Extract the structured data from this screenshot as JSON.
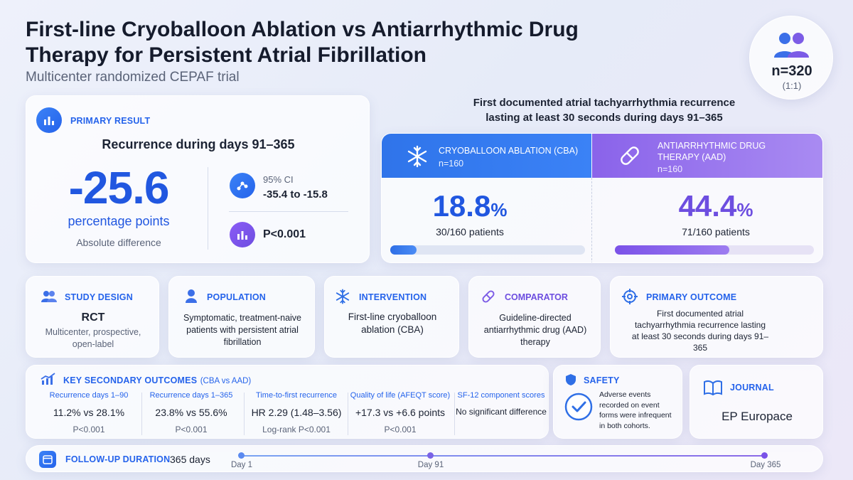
{
  "header": {
    "title": "First-line Cryoballoon Ablation vs Antiarrhythmic Drug Therapy for Persistent Atrial Fibrillation",
    "subtitle": "Multicenter randomized CEPAF trial"
  },
  "enrollment": {
    "n": "n=320",
    "ratio": "(1:1)"
  },
  "primary_result": {
    "label": "PRIMARY RESULT",
    "heading": "Recurrence during days 91–365",
    "value": "-25.6",
    "unit": "percentage points",
    "caption": "Absolute difference",
    "ci_label": "95% CI",
    "ci_value": "-35.4 to -15.8",
    "p_value": "P<0.001"
  },
  "comparison": {
    "heading": "First documented atrial tachyarrhythmia recurrence lasting at least 30 seconds during days 91–365",
    "arms": [
      {
        "name": "CRYOBALLOON ABLATION (CBA)",
        "n": "n=160",
        "rate": "18.8",
        "pct": "%",
        "patients": "30/160 patients",
        "fraction": 0.188
      },
      {
        "name": "ANTIARRHYTHMIC DRUG THERAPY (AAD)",
        "n": "n=160",
        "rate": "44.4",
        "pct": "%",
        "patients": "71/160 patients",
        "fraction": 0.444
      }
    ]
  },
  "pico": {
    "design": {
      "label": "STUDY DESIGN",
      "main": "RCT",
      "detail": "Multicenter, prospective, open-label"
    },
    "population": {
      "label": "POPULATION",
      "text": "Symptomatic, treatment-naive patients with persistent atrial fibrillation"
    },
    "intervention": {
      "label": "INTERVENTION",
      "text": "First-line cryoballoon ablation (CBA)"
    },
    "comparator": {
      "label": "COMPARATOR",
      "text": "Guideline-directed antiarrhythmic drug (AAD) therapy"
    },
    "outcome": {
      "label": "PRIMARY OUTCOME",
      "text": "First documented atrial tachyarrhythmia recurrence lasting at least 30 seconds during days 91–365"
    }
  },
  "secondary": {
    "label": "KEY SECONDARY OUTCOMES",
    "label_suffix": "(CBA vs AAD)",
    "items": [
      {
        "title": "Recurrence days 1–90",
        "value": "11.2% vs 28.1%",
        "p": "P<0.001"
      },
      {
        "title": "Recurrence days 1–365",
        "value": "23.8% vs 55.6%",
        "p": "P<0.001"
      },
      {
        "title": "Time-to-first recurrence",
        "value": "HR 2.29 (1.48–3.56)",
        "p": "Log-rank P<0.001"
      },
      {
        "title": "Quality of life (AFEQT score)",
        "value": "+17.3 vs +6.6 points",
        "p": "P<0.001"
      },
      {
        "title": "SF-12 component scores",
        "value": "No significant difference",
        "p": ""
      }
    ]
  },
  "safety": {
    "label": "SAFETY",
    "text": "Adverse events recorded on event forms were infrequent in both cohorts."
  },
  "journal": {
    "label": "JOURNAL",
    "name": "EP Europace"
  },
  "followup": {
    "label": "FOLLOW-UP DURATION",
    "value": "365 days",
    "markers": [
      "Day 1",
      "Day 91",
      "Day 365"
    ]
  },
  "colors": {
    "accent_blue": "#2563eb",
    "accent_purple": "#6d4ee0"
  },
  "icons": [
    "users-icon",
    "bar-chart-icon",
    "network-icon",
    "snowflake-icon",
    "pill-icon",
    "target-icon",
    "trend-icon",
    "shield-icon",
    "check-icon",
    "book-icon",
    "calendar-icon",
    "user-icon"
  ]
}
